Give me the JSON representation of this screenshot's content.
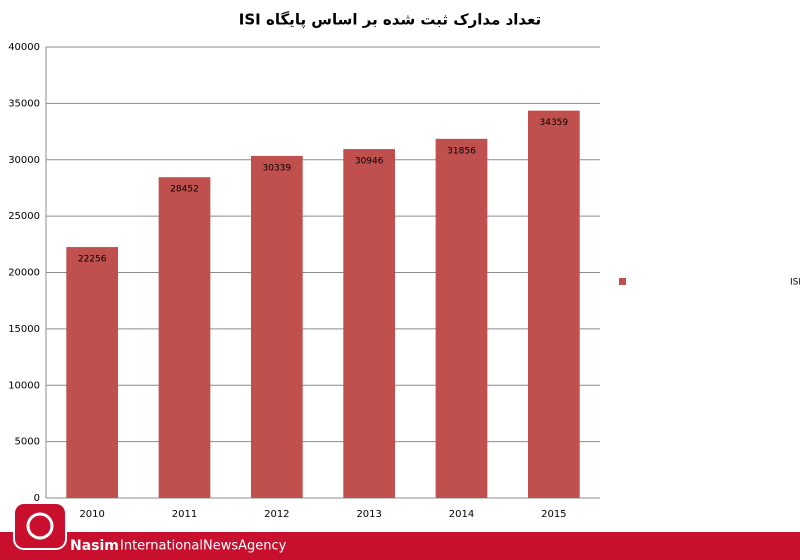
{
  "chart_data": {
    "type": "bar",
    "title": "تعداد مدارک ثبت شده بر اساس  پایگاه ISI",
    "categories": [
      "2010",
      "2011",
      "2012",
      "2013",
      "2014",
      "2015"
    ],
    "series": [
      {
        "name": "تعداد مدارک ثبت شده بر اساس  پایگاه ISI",
        "color": "#c0504d",
        "values": [
          22256,
          28452,
          30339,
          30946,
          31856,
          34359
        ]
      }
    ],
    "ylim": [
      0,
      40000
    ],
    "yticks": [
      0,
      5000,
      10000,
      15000,
      20000,
      25000,
      30000,
      35000,
      40000
    ],
    "grid": true,
    "legend": "right"
  },
  "footer": {
    "brand": "Nasim",
    "agency": "InternationalNewsAgency"
  }
}
